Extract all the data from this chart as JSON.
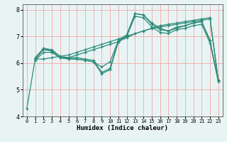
{
  "title": "",
  "xlabel": "Humidex (Indice chaleur)",
  "bg_color": "#e8f4f4",
  "line_color": "#2e8b7a",
  "grid_color": "#f0b0b0",
  "xlim": [
    -0.5,
    23.5
  ],
  "ylim": [
    4,
    8.2
  ],
  "xticks": [
    0,
    1,
    2,
    3,
    4,
    5,
    6,
    7,
    8,
    9,
    10,
    11,
    12,
    13,
    14,
    15,
    16,
    17,
    18,
    19,
    20,
    21,
    22,
    23
  ],
  "yticks": [
    4,
    5,
    6,
    7,
    8
  ],
  "lines": [
    {
      "x": [
        0,
        1,
        2,
        3,
        4,
        5,
        6,
        7,
        8,
        9,
        10,
        11,
        12,
        13,
        14,
        15,
        16,
        17,
        18,
        19,
        20,
        21,
        22
      ],
      "y": [
        4.3,
        6.15,
        6.55,
        6.45,
        6.2,
        6.15,
        6.15,
        6.1,
        6.05,
        5.85,
        6.05,
        6.85,
        7.05,
        7.85,
        7.8,
        7.5,
        7.3,
        7.2,
        7.35,
        7.4,
        7.5,
        7.55,
        6.85
      ]
    },
    {
      "x": [
        1,
        2,
        3,
        4,
        5,
        6,
        7,
        8,
        9,
        10,
        11,
        12,
        13,
        14,
        15,
        16,
        17,
        18,
        19,
        20,
        21,
        22,
        23
      ],
      "y": [
        6.15,
        6.5,
        6.45,
        6.2,
        6.15,
        6.15,
        6.1,
        6.05,
        5.6,
        5.75,
        6.8,
        7.0,
        7.75,
        7.7,
        7.35,
        7.15,
        7.1,
        7.25,
        7.3,
        7.4,
        7.45,
        6.75,
        5.3
      ]
    },
    {
      "x": [
        1,
        2,
        3,
        4,
        5,
        6,
        7,
        8,
        9,
        10,
        11,
        12,
        13,
        14,
        15,
        16,
        17,
        18,
        19,
        20,
        21,
        22,
        23
      ],
      "y": [
        6.2,
        6.55,
        6.5,
        6.25,
        6.2,
        6.2,
        6.15,
        6.1,
        5.65,
        5.8,
        6.85,
        7.05,
        7.85,
        7.8,
        7.45,
        7.25,
        7.2,
        7.3,
        7.4,
        7.5,
        7.55,
        6.85,
        5.35
      ]
    },
    {
      "x": [
        1,
        2,
        3,
        4,
        5,
        6,
        7,
        8,
        9,
        10,
        11,
        12,
        13,
        14,
        15,
        16,
        17,
        18,
        19,
        20,
        21,
        22,
        23
      ],
      "y": [
        6.1,
        6.4,
        6.4,
        6.2,
        6.2,
        6.3,
        6.4,
        6.5,
        6.6,
        6.7,
        6.8,
        6.95,
        7.1,
        7.2,
        7.3,
        7.35,
        7.4,
        7.45,
        7.5,
        7.55,
        7.6,
        7.65,
        5.35
      ]
    },
    {
      "x": [
        1,
        2,
        3,
        4,
        5,
        6,
        7,
        8,
        9,
        10,
        11,
        12,
        13,
        14,
        15,
        16,
        17,
        18,
        19,
        20,
        21,
        22,
        23
      ],
      "y": [
        6.15,
        6.15,
        6.2,
        6.25,
        6.3,
        6.4,
        6.5,
        6.6,
        6.7,
        6.8,
        6.9,
        7.0,
        7.1,
        7.2,
        7.3,
        7.4,
        7.45,
        7.5,
        7.55,
        7.6,
        7.65,
        7.7,
        5.35
      ]
    }
  ]
}
